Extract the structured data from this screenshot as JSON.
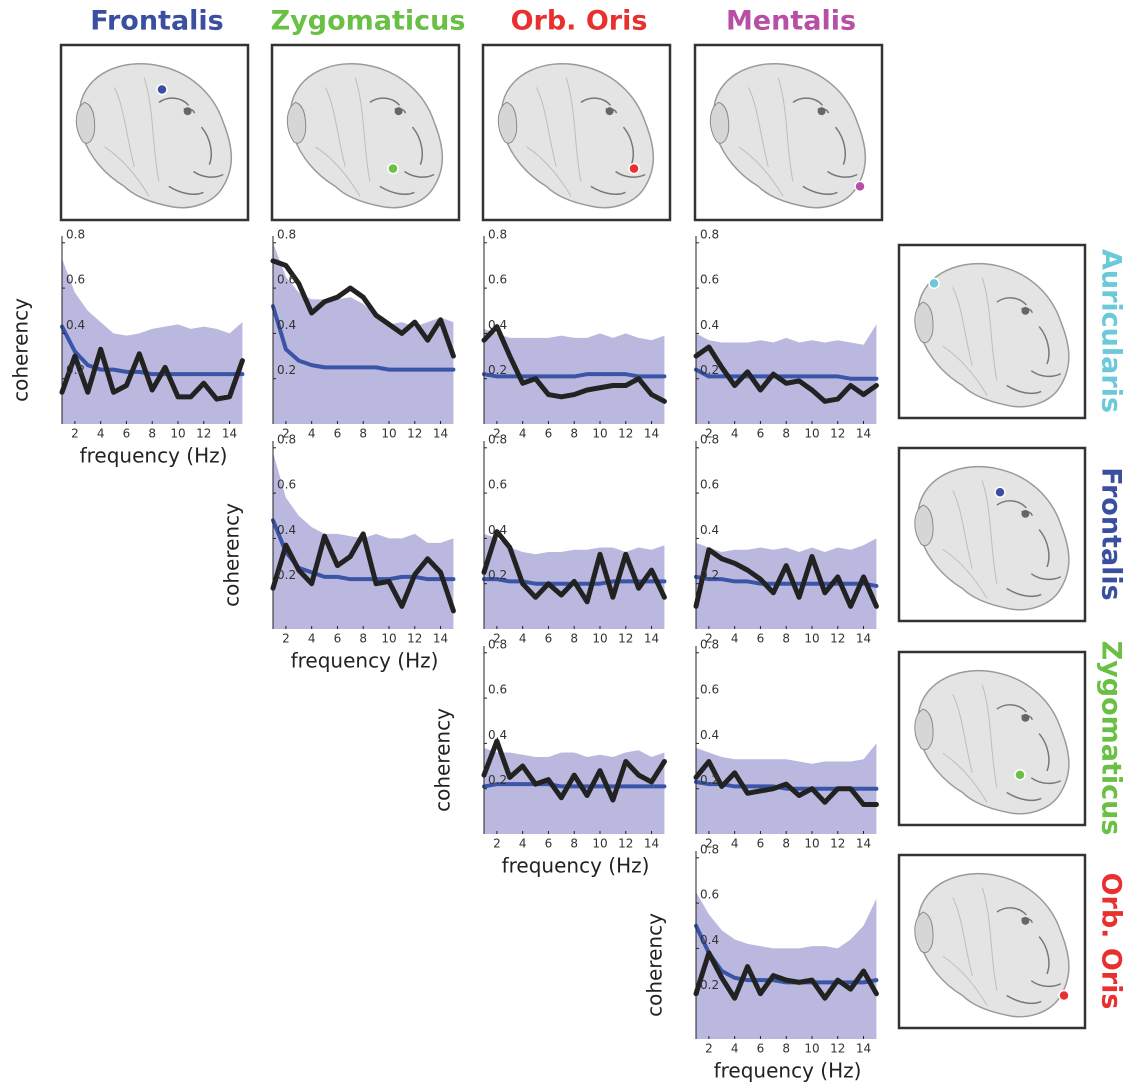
{
  "columns": [
    {
      "label": "Frontalis",
      "color": "#3a4fa0"
    },
    {
      "label": "Zygomaticus",
      "color": "#6abf45"
    },
    {
      "label": "Orb. Oris",
      "color": "#e8312f"
    },
    {
      "label": "Mentalis",
      "color": "#b84fa6"
    }
  ],
  "rows": [
    {
      "label": "Auricularis",
      "color": "#6cc9da"
    },
    {
      "label": "Frontalis",
      "color": "#3a4fa0"
    },
    {
      "label": "Zygomaticus",
      "color": "#6abf45"
    },
    {
      "label": "Orb. Oris",
      "color": "#e8312f"
    }
  ],
  "chart_data": [
    {
      "type": "line",
      "ylabel": "coherency",
      "xlabel": "frequency (Hz)",
      "x": [
        1,
        2,
        3,
        4,
        5,
        6,
        7,
        8,
        9,
        10,
        11,
        12,
        13,
        14,
        15
      ],
      "xlim": [
        1,
        15.2
      ],
      "ylim": [
        0,
        0.83
      ],
      "xticks": [
        2,
        4,
        6,
        8,
        10,
        12,
        14
      ],
      "yticks": [
        0.2,
        0.4,
        0.6,
        0.8
      ],
      "series": [
        {
          "color": "#bab8de",
          "fill": true,
          "values": [
            0.73,
            0.58,
            0.5,
            0.45,
            0.4,
            0.39,
            0.4,
            0.42,
            0.43,
            0.44,
            0.42,
            0.43,
            0.42,
            0.4,
            0.45
          ]
        },
        {
          "color": "#3a55a8",
          "values": [
            0.43,
            0.32,
            0.26,
            0.24,
            0.24,
            0.23,
            0.23,
            0.22,
            0.22,
            0.22,
            0.22,
            0.22,
            0.22,
            0.22,
            0.22
          ]
        },
        {
          "color": "#222222",
          "values": [
            0.14,
            0.3,
            0.14,
            0.33,
            0.14,
            0.17,
            0.31,
            0.15,
            0.25,
            0.12,
            0.12,
            0.18,
            0.11,
            0.12,
            0.28
          ]
        }
      ]
    },
    {
      "type": "line",
      "x": [
        1,
        2,
        3,
        4,
        5,
        6,
        7,
        8,
        9,
        10,
        11,
        12,
        13,
        14,
        15
      ],
      "xlim": [
        1,
        15.2
      ],
      "ylim": [
        0,
        0.83
      ],
      "xticks": [
        2,
        4,
        6,
        8,
        10,
        12,
        14
      ],
      "yticks": [
        0.2,
        0.4,
        0.6,
        0.8
      ],
      "series": [
        {
          "color": "#bab8de",
          "fill": true,
          "values": [
            0.8,
            0.65,
            0.58,
            0.55,
            0.55,
            0.55,
            0.56,
            0.53,
            0.48,
            0.44,
            0.45,
            0.43,
            0.45,
            0.47,
            0.45
          ]
        },
        {
          "color": "#3a55a8",
          "values": [
            0.52,
            0.33,
            0.28,
            0.26,
            0.25,
            0.25,
            0.25,
            0.25,
            0.25,
            0.24,
            0.24,
            0.24,
            0.24,
            0.24,
            0.24
          ]
        },
        {
          "color": "#222222",
          "values": [
            0.72,
            0.7,
            0.62,
            0.49,
            0.54,
            0.56,
            0.6,
            0.56,
            0.48,
            0.44,
            0.4,
            0.45,
            0.37,
            0.46,
            0.3
          ]
        }
      ]
    },
    {
      "type": "line",
      "x": [
        1,
        2,
        3,
        4,
        5,
        6,
        7,
        8,
        9,
        10,
        11,
        12,
        13,
        14,
        15
      ],
      "xlim": [
        1,
        15.2
      ],
      "ylim": [
        0,
        0.83
      ],
      "xticks": [
        2,
        4,
        6,
        8,
        10,
        12,
        14
      ],
      "yticks": [
        0.2,
        0.4,
        0.6,
        0.8
      ],
      "series": [
        {
          "color": "#bab8de",
          "fill": true,
          "values": [
            0.42,
            0.4,
            0.38,
            0.38,
            0.38,
            0.38,
            0.39,
            0.38,
            0.38,
            0.4,
            0.38,
            0.4,
            0.38,
            0.37,
            0.39
          ]
        },
        {
          "color": "#3a55a8",
          "values": [
            0.22,
            0.21,
            0.21,
            0.21,
            0.21,
            0.21,
            0.21,
            0.21,
            0.22,
            0.22,
            0.22,
            0.22,
            0.21,
            0.21,
            0.21
          ]
        },
        {
          "color": "#222222",
          "values": [
            0.37,
            0.43,
            0.3,
            0.18,
            0.2,
            0.13,
            0.12,
            0.13,
            0.15,
            0.16,
            0.17,
            0.17,
            0.2,
            0.13,
            0.1
          ]
        }
      ]
    },
    {
      "type": "line",
      "x": [
        1,
        2,
        3,
        4,
        5,
        6,
        7,
        8,
        9,
        10,
        11,
        12,
        13,
        14,
        15
      ],
      "xlim": [
        1,
        15.2
      ],
      "ylim": [
        0,
        0.83
      ],
      "xticks": [
        2,
        4,
        6,
        8,
        10,
        12,
        14
      ],
      "yticks": [
        0.2,
        0.4,
        0.6,
        0.8
      ],
      "series": [
        {
          "color": "#bab8de",
          "fill": true,
          "values": [
            0.4,
            0.37,
            0.36,
            0.36,
            0.36,
            0.37,
            0.36,
            0.38,
            0.36,
            0.37,
            0.36,
            0.37,
            0.36,
            0.35,
            0.44
          ]
        },
        {
          "color": "#3a55a8",
          "values": [
            0.24,
            0.21,
            0.21,
            0.21,
            0.21,
            0.21,
            0.21,
            0.21,
            0.21,
            0.21,
            0.21,
            0.21,
            0.2,
            0.2,
            0.2
          ]
        },
        {
          "color": "#222222",
          "values": [
            0.3,
            0.34,
            0.25,
            0.17,
            0.23,
            0.15,
            0.22,
            0.18,
            0.19,
            0.15,
            0.1,
            0.11,
            0.17,
            0.13,
            0.17
          ]
        }
      ]
    },
    {
      "type": "line",
      "ylabel": "coherency",
      "xlabel": "frequency (Hz)",
      "x": [
        1,
        2,
        3,
        4,
        5,
        6,
        7,
        8,
        9,
        10,
        11,
        12,
        13,
        14,
        15
      ],
      "xlim": [
        1,
        15.2
      ],
      "ylim": [
        0,
        0.83
      ],
      "xticks": [
        2,
        4,
        6,
        8,
        10,
        12,
        14
      ],
      "yticks": [
        0.2,
        0.4,
        0.6,
        0.8
      ],
      "series": [
        {
          "color": "#bab8de",
          "fill": true,
          "values": [
            0.78,
            0.58,
            0.5,
            0.45,
            0.42,
            0.42,
            0.41,
            0.4,
            0.42,
            0.4,
            0.4,
            0.42,
            0.38,
            0.38,
            0.4
          ]
        },
        {
          "color": "#3a55a8",
          "values": [
            0.48,
            0.34,
            0.27,
            0.25,
            0.23,
            0.23,
            0.22,
            0.22,
            0.22,
            0.22,
            0.23,
            0.23,
            0.22,
            0.22,
            0.22
          ]
        },
        {
          "color": "#222222",
          "values": [
            0.18,
            0.37,
            0.26,
            0.2,
            0.41,
            0.28,
            0.32,
            0.42,
            0.2,
            0.21,
            0.1,
            0.24,
            0.31,
            0.25,
            0.08
          ]
        }
      ]
    },
    {
      "type": "line",
      "x": [
        1,
        2,
        3,
        4,
        5,
        6,
        7,
        8,
        9,
        10,
        11,
        12,
        13,
        14,
        15
      ],
      "xlim": [
        1,
        15.2
      ],
      "ylim": [
        0,
        0.83
      ],
      "xticks": [
        2,
        4,
        6,
        8,
        10,
        12,
        14
      ],
      "yticks": [
        0.2,
        0.4,
        0.6,
        0.8
      ],
      "series": [
        {
          "color": "#bab8de",
          "fill": true,
          "values": [
            0.42,
            0.4,
            0.36,
            0.34,
            0.33,
            0.34,
            0.34,
            0.35,
            0.35,
            0.36,
            0.36,
            0.34,
            0.36,
            0.35,
            0.37
          ]
        },
        {
          "color": "#3a55a8",
          "values": [
            0.22,
            0.22,
            0.21,
            0.21,
            0.2,
            0.2,
            0.2,
            0.2,
            0.2,
            0.2,
            0.21,
            0.21,
            0.21,
            0.21,
            0.21
          ]
        },
        {
          "color": "#222222",
          "values": [
            0.25,
            0.43,
            0.36,
            0.2,
            0.14,
            0.2,
            0.15,
            0.21,
            0.12,
            0.33,
            0.14,
            0.33,
            0.18,
            0.26,
            0.14
          ]
        }
      ]
    },
    {
      "type": "line",
      "x": [
        1,
        2,
        3,
        4,
        5,
        6,
        7,
        8,
        9,
        10,
        11,
        12,
        13,
        14,
        15
      ],
      "xlim": [
        1,
        15.2
      ],
      "ylim": [
        0,
        0.83
      ],
      "xticks": [
        2,
        4,
        6,
        8,
        10,
        12,
        14
      ],
      "yticks": [
        0.2,
        0.4,
        0.6,
        0.8
      ],
      "series": [
        {
          "color": "#bab8de",
          "fill": true,
          "values": [
            0.38,
            0.36,
            0.34,
            0.35,
            0.35,
            0.36,
            0.35,
            0.36,
            0.34,
            0.36,
            0.34,
            0.36,
            0.35,
            0.37,
            0.4
          ]
        },
        {
          "color": "#3a55a8",
          "values": [
            0.23,
            0.22,
            0.22,
            0.21,
            0.21,
            0.2,
            0.2,
            0.2,
            0.2,
            0.2,
            0.2,
            0.2,
            0.2,
            0.2,
            0.19
          ]
        },
        {
          "color": "#222222",
          "values": [
            0.1,
            0.35,
            0.31,
            0.29,
            0.26,
            0.22,
            0.16,
            0.28,
            0.14,
            0.32,
            0.16,
            0.23,
            0.1,
            0.23,
            0.1
          ]
        }
      ]
    },
    {
      "type": "line",
      "ylabel": "coherency",
      "xlabel": "frequency (Hz)",
      "x": [
        1,
        2,
        3,
        4,
        5,
        6,
        7,
        8,
        9,
        10,
        11,
        12,
        13,
        14,
        15
      ],
      "xlim": [
        1,
        15.2
      ],
      "ylim": [
        0,
        0.83
      ],
      "xticks": [
        2,
        4,
        6,
        8,
        10,
        12,
        14
      ],
      "yticks": [
        0.2,
        0.4,
        0.6,
        0.8
      ],
      "series": [
        {
          "color": "#bab8de",
          "fill": true,
          "values": [
            0.38,
            0.36,
            0.36,
            0.35,
            0.34,
            0.34,
            0.36,
            0.36,
            0.34,
            0.35,
            0.34,
            0.36,
            0.37,
            0.34,
            0.36
          ]
        },
        {
          "color": "#3a55a8",
          "values": [
            0.21,
            0.22,
            0.22,
            0.22,
            0.22,
            0.22,
            0.21,
            0.21,
            0.21,
            0.21,
            0.21,
            0.21,
            0.21,
            0.21,
            0.21
          ]
        },
        {
          "color": "#222222",
          "values": [
            0.26,
            0.41,
            0.25,
            0.3,
            0.22,
            0.24,
            0.16,
            0.26,
            0.17,
            0.28,
            0.15,
            0.32,
            0.26,
            0.23,
            0.32
          ]
        }
      ]
    },
    {
      "type": "line",
      "x": [
        1,
        2,
        3,
        4,
        5,
        6,
        7,
        8,
        9,
        10,
        11,
        12,
        13,
        14,
        15
      ],
      "xlim": [
        1,
        15.2
      ],
      "ylim": [
        0,
        0.83
      ],
      "xticks": [
        2,
        4,
        6,
        8,
        10,
        12,
        14
      ],
      "yticks": [
        0.2,
        0.4,
        0.6,
        0.8
      ],
      "series": [
        {
          "color": "#bab8de",
          "fill": true,
          "values": [
            0.38,
            0.36,
            0.34,
            0.33,
            0.33,
            0.33,
            0.33,
            0.33,
            0.32,
            0.31,
            0.32,
            0.32,
            0.32,
            0.33,
            0.4
          ]
        },
        {
          "color": "#3a55a8",
          "values": [
            0.23,
            0.22,
            0.22,
            0.21,
            0.21,
            0.21,
            0.21,
            0.2,
            0.2,
            0.2,
            0.2,
            0.2,
            0.2,
            0.2,
            0.2
          ]
        },
        {
          "color": "#222222",
          "values": [
            0.25,
            0.32,
            0.21,
            0.27,
            0.18,
            0.19,
            0.2,
            0.22,
            0.17,
            0.2,
            0.14,
            0.2,
            0.2,
            0.13,
            0.13
          ]
        }
      ]
    },
    {
      "type": "line",
      "ylabel": "coherency",
      "xlabel": "frequency (Hz)",
      "x": [
        1,
        2,
        3,
        4,
        5,
        6,
        7,
        8,
        9,
        10,
        11,
        12,
        13,
        14,
        15
      ],
      "xlim": [
        1,
        15.2
      ],
      "ylim": [
        0,
        0.83
      ],
      "xticks": [
        2,
        4,
        6,
        8,
        10,
        12,
        14
      ],
      "yticks": [
        0.2,
        0.4,
        0.6,
        0.8
      ],
      "series": [
        {
          "color": "#bab8de",
          "fill": true,
          "values": [
            0.65,
            0.55,
            0.48,
            0.44,
            0.42,
            0.41,
            0.4,
            0.4,
            0.4,
            0.41,
            0.41,
            0.4,
            0.44,
            0.5,
            0.62
          ]
        },
        {
          "color": "#3a55a8",
          "values": [
            0.5,
            0.38,
            0.3,
            0.27,
            0.26,
            0.26,
            0.26,
            0.25,
            0.25,
            0.25,
            0.25,
            0.25,
            0.25,
            0.25,
            0.26
          ]
        },
        {
          "color": "#222222",
          "values": [
            0.2,
            0.38,
            0.27,
            0.18,
            0.32,
            0.2,
            0.28,
            0.26,
            0.25,
            0.26,
            0.18,
            0.26,
            0.22,
            0.3,
            0.2
          ]
        }
      ]
    }
  ]
}
